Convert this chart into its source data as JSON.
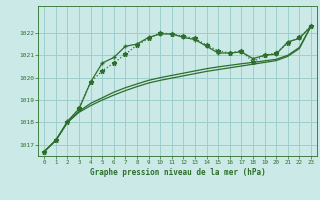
{
  "title": "Graphe pression niveau de la mer (hPa)",
  "background_color": "#cbe9e7",
  "grid_color": "#9ecfcc",
  "line_color": "#2d6e2d",
  "xlim": [
    -0.5,
    23.5
  ],
  "ylim": [
    1016.5,
    1023.2
  ],
  "yticks": [
    1017,
    1018,
    1019,
    1020,
    1021,
    1022
  ],
  "xticks": [
    0,
    1,
    2,
    3,
    4,
    5,
    6,
    7,
    8,
    9,
    10,
    11,
    12,
    13,
    14,
    15,
    16,
    17,
    18,
    19,
    20,
    21,
    22,
    23
  ],
  "dotted_x": [
    0,
    1,
    2,
    3,
    4,
    5,
    6,
    7,
    8,
    9,
    10,
    11,
    12,
    13,
    14,
    15,
    16,
    17,
    18,
    19,
    20,
    21,
    22,
    23
  ],
  "dotted_y": [
    1016.7,
    1017.2,
    1018.0,
    1018.65,
    1019.8,
    1020.3,
    1020.65,
    1021.05,
    1021.45,
    1021.75,
    1022.0,
    1021.95,
    1021.85,
    1021.75,
    1021.45,
    1021.2,
    1021.1,
    1021.2,
    1020.7,
    1021.0,
    1021.1,
    1021.55,
    1021.8,
    1022.3
  ],
  "plus_x": [
    0,
    1,
    2,
    3,
    4,
    5,
    6,
    7,
    8,
    9,
    10,
    11,
    12,
    13,
    14,
    15,
    16,
    17,
    18,
    19,
    20,
    21,
    22,
    23
  ],
  "plus_y": [
    1016.7,
    1017.2,
    1018.05,
    1018.6,
    1019.8,
    1020.65,
    1020.9,
    1021.4,
    1021.5,
    1021.8,
    1021.95,
    1021.95,
    1021.8,
    1021.7,
    1021.4,
    1021.1,
    1021.1,
    1021.15,
    1020.85,
    1021.0,
    1021.05,
    1021.6,
    1021.75,
    1022.3
  ],
  "line2_x": [
    0,
    1,
    2,
    3,
    4,
    5,
    6,
    7,
    8,
    9,
    10,
    11,
    12,
    13,
    14,
    15,
    16,
    17,
    18,
    19,
    20,
    21,
    22,
    23
  ],
  "line2_y": [
    1016.7,
    1017.2,
    1018.0,
    1018.5,
    1018.85,
    1019.1,
    1019.35,
    1019.55,
    1019.72,
    1019.88,
    1020.0,
    1020.1,
    1020.2,
    1020.3,
    1020.4,
    1020.48,
    1020.55,
    1020.62,
    1020.68,
    1020.75,
    1020.82,
    1021.0,
    1021.35,
    1022.3
  ],
  "line3_x": [
    0,
    1,
    2,
    3,
    4,
    5,
    6,
    7,
    8,
    9,
    10,
    11,
    12,
    13,
    14,
    15,
    16,
    17,
    18,
    19,
    20,
    21,
    22,
    23
  ],
  "line3_y": [
    1016.7,
    1017.2,
    1018.0,
    1018.45,
    1018.75,
    1019.0,
    1019.22,
    1019.42,
    1019.6,
    1019.76,
    1019.88,
    1019.98,
    1020.08,
    1020.18,
    1020.28,
    1020.36,
    1020.44,
    1020.52,
    1020.6,
    1020.68,
    1020.76,
    1020.95,
    1021.3,
    1022.3
  ]
}
